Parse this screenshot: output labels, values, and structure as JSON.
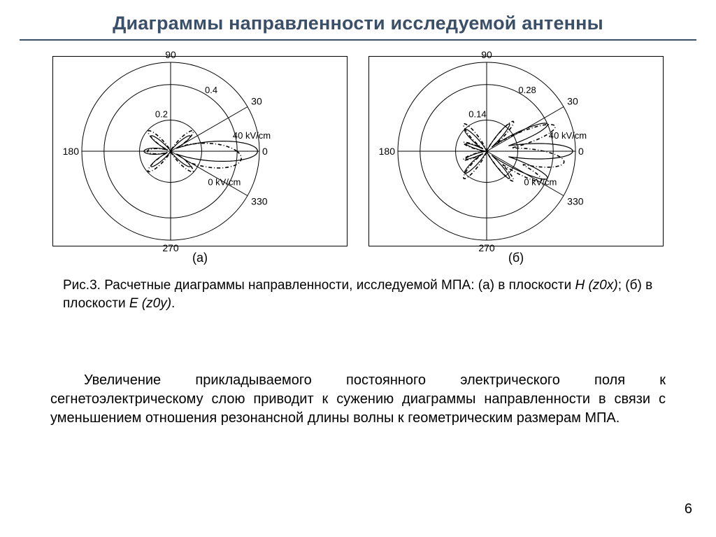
{
  "slide": {
    "title": "Диаграммы направленности исследуемой антенны",
    "title_color": "#3c4f68",
    "rule_color": "#3c4f68",
    "bg_color": "#ffffff",
    "page_number": "6"
  },
  "figure": {
    "panel_a_label": "(а)",
    "panel_b_label": "(б)",
    "caption_prefix": "Рис.3. Расчетные диаграммы направленности, исследуемой МПА: (а) в плоскости ",
    "caption_plane_a": "H (z0x)",
    "caption_mid": "; (б) в плоскости ",
    "caption_plane_b": "E (z0y)",
    "caption_suffix": "."
  },
  "body": {
    "paragraph": "Увеличение прикладываемого постоянного электрического поля к сегнетоэлектрическому слою приводит к сужению диаграммы направленности в  связи с уменьшением отношения резонансной длины волны к геометрическим размерам МПА."
  },
  "polar": {
    "type": "polar-line",
    "box_width_a": 420,
    "box_height_a": 270,
    "box_width_b": 420,
    "box_height_b": 270,
    "border_color": "#000000",
    "grid_color": "#000000",
    "background_color": "#ffffff",
    "font_size_angle": 14,
    "font_size_radial": 13,
    "font_size_curve": 13,
    "line_width_solid": 1.2,
    "line_width_dashdot": 1.6,
    "dash_pattern": "5,3,1,3",
    "angle_ticks": [
      0,
      30,
      90,
      180,
      270,
      330
    ],
    "angle_labels": [
      "0",
      "30",
      "90",
      "180",
      "270",
      "330"
    ],
    "panel_a": {
      "radial_labels": [
        "0.2",
        "0.4"
      ],
      "radial_positions": [
        0.35,
        0.75
      ],
      "curve_40_label": "40 kV/cm",
      "curve_0_label": "0 kV/cm",
      "curves": {
        "solid_40kv": {
          "style": "solid",
          "lobes": [
            {
              "angle_deg": 0,
              "width_deg": 26,
              "amplitude": 0.98,
              "skew": 0
            },
            {
              "angle_deg": 38,
              "width_deg": 18,
              "amplitude": 0.28,
              "skew": 0
            },
            {
              "angle_deg": 142,
              "width_deg": 18,
              "amplitude": 0.28,
              "skew": 0
            },
            {
              "angle_deg": 180,
              "width_deg": 26,
              "amplitude": 0.3,
              "skew": 0
            },
            {
              "angle_deg": 218,
              "width_deg": 18,
              "amplitude": 0.28,
              "skew": 0
            },
            {
              "angle_deg": 322,
              "width_deg": 18,
              "amplitude": 0.28,
              "skew": 0
            }
          ]
        },
        "dashdot_0kv": {
          "style": "dashdot",
          "lobes": [
            {
              "angle_deg": 354,
              "width_deg": 38,
              "amplitude": 0.8,
              "skew": -6
            },
            {
              "angle_deg": 42,
              "width_deg": 22,
              "amplitude": 0.34,
              "skew": 0
            },
            {
              "angle_deg": 138,
              "width_deg": 22,
              "amplitude": 0.34,
              "skew": 0
            },
            {
              "angle_deg": 180,
              "width_deg": 26,
              "amplitude": 0.26,
              "skew": 0
            },
            {
              "angle_deg": 222,
              "width_deg": 22,
              "amplitude": 0.34,
              "skew": 0
            },
            {
              "angle_deg": 318,
              "width_deg": 22,
              "amplitude": 0.34,
              "skew": 0
            }
          ]
        }
      }
    },
    "panel_b": {
      "radial_labels": [
        "0.14",
        "0.28"
      ],
      "radial_positions": [
        0.35,
        0.75
      ],
      "curve_40_label": "40 kV/cm",
      "curve_0_label": "0 kV/cm",
      "curves": {
        "solid_40kv": {
          "style": "solid",
          "lobes": [
            {
              "angle_deg": 0,
              "width_deg": 20,
              "amplitude": 0.97,
              "skew": 0
            },
            {
              "angle_deg": 24,
              "width_deg": 16,
              "amplitude": 0.75,
              "skew": 0
            },
            {
              "angle_deg": 336,
              "width_deg": 16,
              "amplitude": 0.75,
              "skew": 0
            },
            {
              "angle_deg": 50,
              "width_deg": 14,
              "amplitude": 0.4,
              "skew": 0
            },
            {
              "angle_deg": 310,
              "width_deg": 14,
              "amplitude": 0.4,
              "skew": 0
            },
            {
              "angle_deg": 135,
              "width_deg": 18,
              "amplitude": 0.35,
              "skew": 0
            },
            {
              "angle_deg": 160,
              "width_deg": 14,
              "amplitude": 0.25,
              "skew": 0
            },
            {
              "angle_deg": 200,
              "width_deg": 14,
              "amplitude": 0.25,
              "skew": 0
            },
            {
              "angle_deg": 225,
              "width_deg": 18,
              "amplitude": 0.35,
              "skew": 0
            }
          ]
        },
        "dashdot_0kv": {
          "style": "dashdot",
          "lobes": [
            {
              "angle_deg": 352,
              "width_deg": 24,
              "amplitude": 0.88,
              "skew": -6
            },
            {
              "angle_deg": 20,
              "width_deg": 20,
              "amplitude": 0.82,
              "skew": 4
            },
            {
              "angle_deg": 332,
              "width_deg": 18,
              "amplitude": 0.7,
              "skew": 0
            },
            {
              "angle_deg": 48,
              "width_deg": 16,
              "amplitude": 0.45,
              "skew": 0
            },
            {
              "angle_deg": 312,
              "width_deg": 16,
              "amplitude": 0.45,
              "skew": 0
            },
            {
              "angle_deg": 130,
              "width_deg": 20,
              "amplitude": 0.4,
              "skew": 0
            },
            {
              "angle_deg": 160,
              "width_deg": 16,
              "amplitude": 0.28,
              "skew": 0
            },
            {
              "angle_deg": 200,
              "width_deg": 16,
              "amplitude": 0.28,
              "skew": 0
            },
            {
              "angle_deg": 230,
              "width_deg": 20,
              "amplitude": 0.4,
              "skew": 0
            }
          ]
        }
      }
    }
  }
}
